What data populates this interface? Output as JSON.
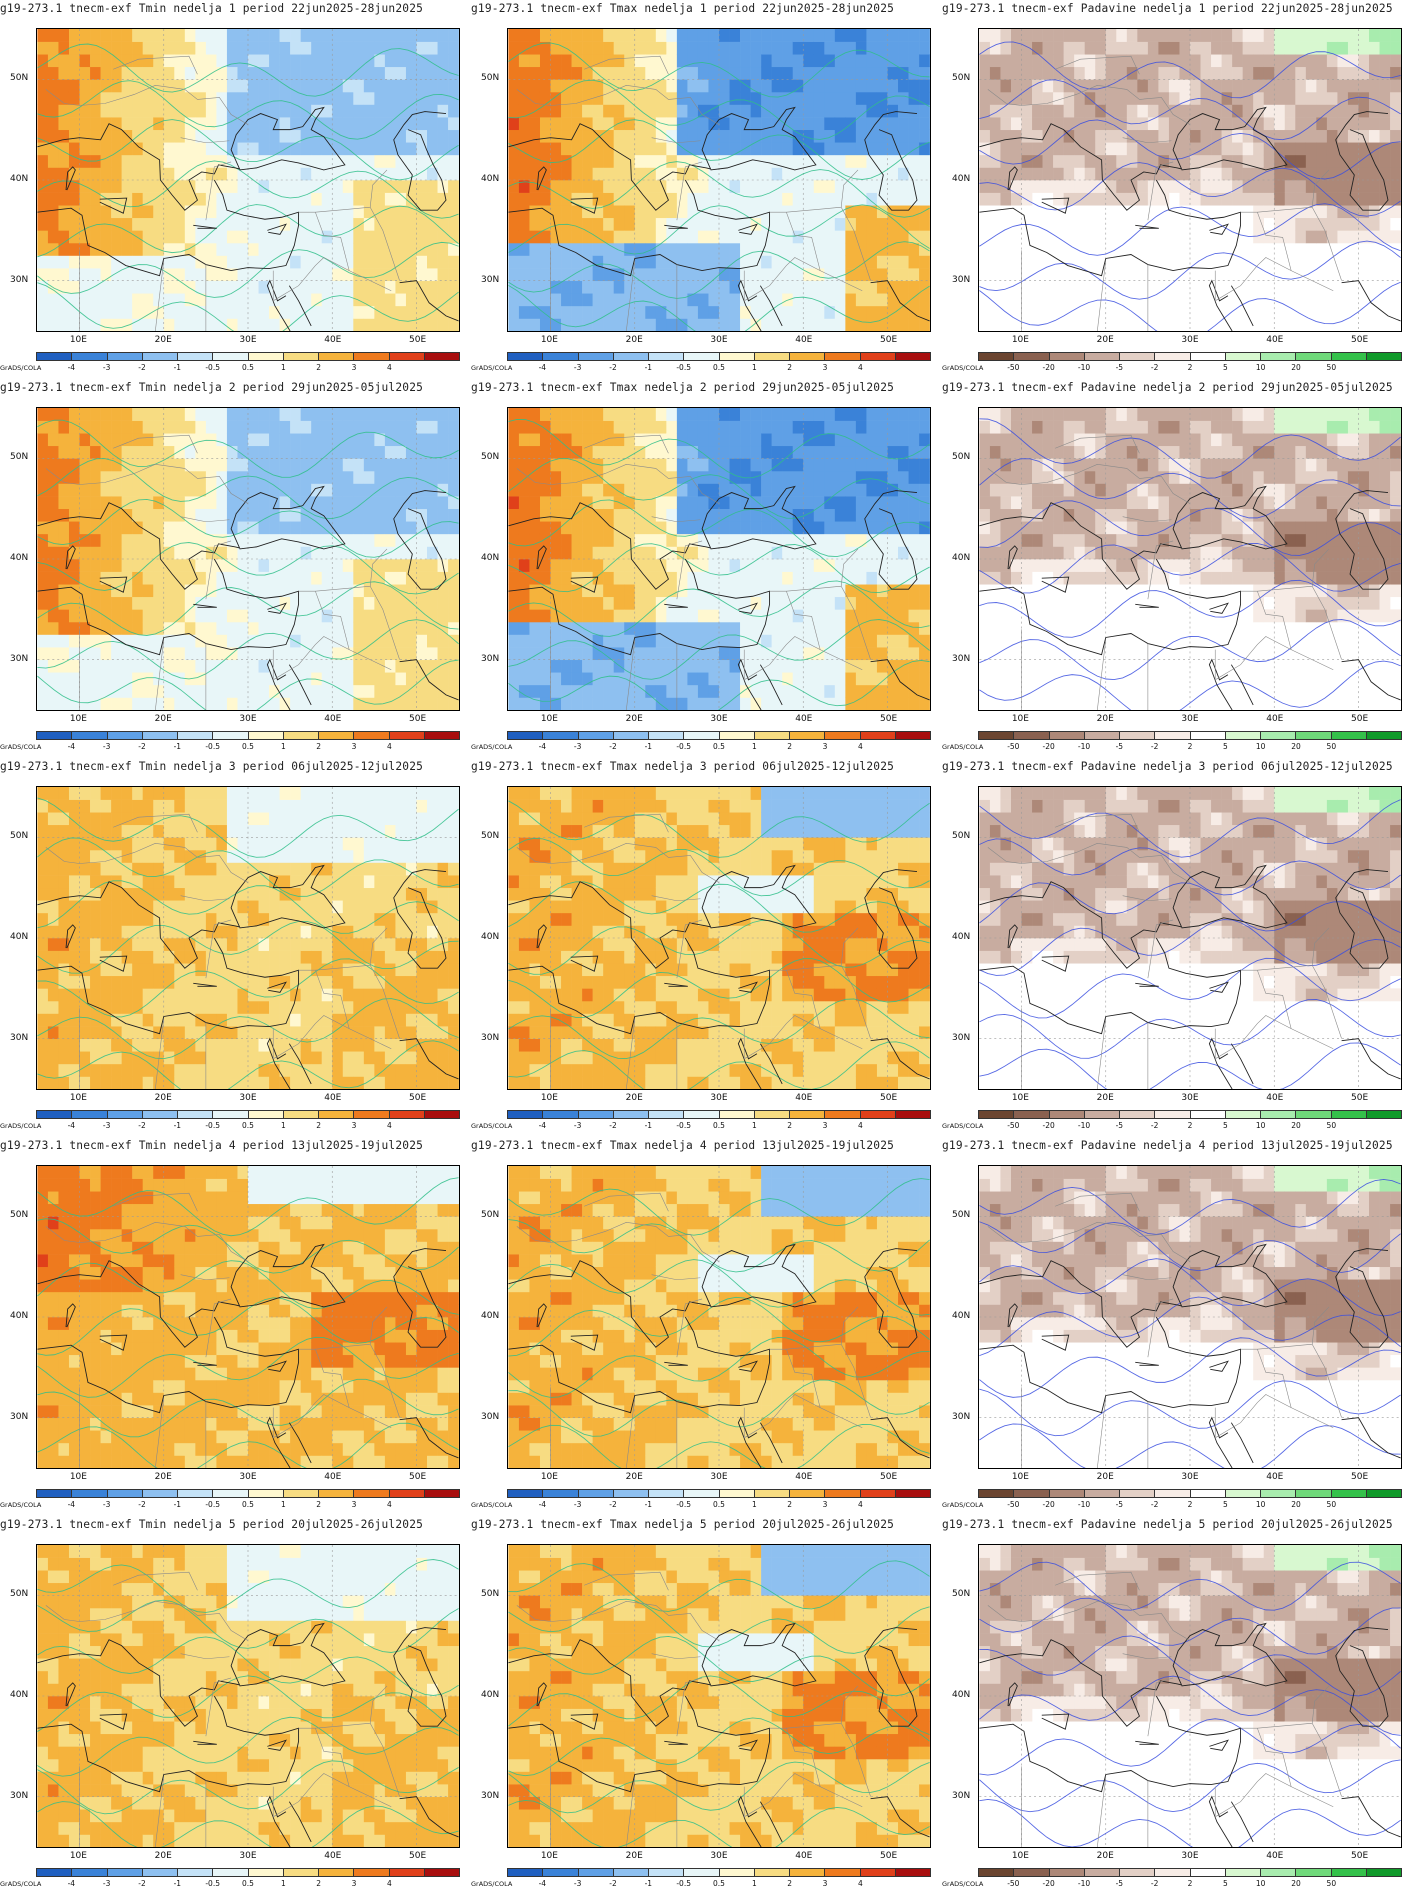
{
  "credit": "GrADS/COLA",
  "lat_labels": [
    "50N",
    "40N",
    "30N"
  ],
  "lon_labels": [
    "10E",
    "20E",
    "30E",
    "40E",
    "50E"
  ],
  "temp_scale": {
    "labels": [
      "-4",
      "-3",
      "-2",
      "-1",
      "-0.5",
      "0.5",
      "1",
      "2",
      "3",
      "4"
    ],
    "colors": [
      "#1f5fc0",
      "#3a82d8",
      "#5fa0e6",
      "#8ec0f0",
      "#c4e2f7",
      "#e8f6f8",
      "#fff8d0",
      "#f7dc82",
      "#f5b33c",
      "#ee7a1e",
      "#e0401a",
      "#a80e0e"
    ]
  },
  "precip_scale": {
    "labels": [
      "-50",
      "-20",
      "-10",
      "-5",
      "-2",
      "2",
      "5",
      "10",
      "20",
      "50"
    ],
    "colors": [
      "#6b4530",
      "#8a6150",
      "#ad8878",
      "#c8aca0",
      "#e3d0c6",
      "#f7ece6",
      "#ffffff",
      "#d8f8d0",
      "#a8ecae",
      "#6fd97a",
      "#34c14a",
      "#109a2a"
    ]
  },
  "panels": [
    {
      "title": "g19-273.1 tnecm-exf Tmin nedelja 1 period 22jun2025-28jun2025",
      "kind": "temp",
      "pattern": "cool-east"
    },
    {
      "title": "g19-273.1 tnecm-exf Tmax nedelja 1 period 22jun2025-28jun2025",
      "kind": "temp",
      "pattern": "strong-cool"
    },
    {
      "title": "g19-273.1 tnecm-exf Padavine nedelja 1 period 22jun2025-28jun2025",
      "kind": "precip",
      "pattern": "dry"
    },
    {
      "title": "g19-273.1 tnecm-exf Tmin nedelja 2 period 29jun2025-05jul2025",
      "kind": "temp",
      "pattern": "cool-east"
    },
    {
      "title": "g19-273.1 tnecm-exf Tmax nedelja 2 period 29jun2025-05jul2025",
      "kind": "temp",
      "pattern": "strong-cool"
    },
    {
      "title": "g19-273.1 tnecm-exf Padavine nedelja 2 period 29jun2025-05jul2025",
      "kind": "precip",
      "pattern": "dry"
    },
    {
      "title": "g19-273.1 tnecm-exf Tmin nedelja 3 period 06jul2025-12jul2025",
      "kind": "temp",
      "pattern": "warm"
    },
    {
      "title": "g19-273.1 tnecm-exf Tmax nedelja 3 period 06jul2025-12jul2025",
      "kind": "temp",
      "pattern": "warm-cool"
    },
    {
      "title": "g19-273.1 tnecm-exf Padavine nedelja 3 period 06jul2025-12jul2025",
      "kind": "precip",
      "pattern": "dry"
    },
    {
      "title": "g19-273.1 tnecm-exf Tmin nedelja 4 period 13jul2025-19jul2025",
      "kind": "temp",
      "pattern": "hot"
    },
    {
      "title": "g19-273.1 tnecm-exf Tmax nedelja 4 period 13jul2025-19jul2025",
      "kind": "temp",
      "pattern": "warm-cool"
    },
    {
      "title": "g19-273.1 tnecm-exf Padavine nedelja 4 period 13jul2025-19jul2025",
      "kind": "precip",
      "pattern": "dry"
    },
    {
      "title": "g19-273.1 tnecm-exf Tmin nedelja 5 period 20jul2025-26jul2025",
      "kind": "temp",
      "pattern": "warm"
    },
    {
      "title": "g19-273.1 tnecm-exf Tmax nedelja 5 period 20jul2025-26jul2025",
      "kind": "temp",
      "pattern": "warm-cool"
    },
    {
      "title": "g19-273.1 tnecm-exf Padavine nedelja 5 period 20jul2025-26jul2025",
      "kind": "precip",
      "pattern": "dry"
    }
  ]
}
